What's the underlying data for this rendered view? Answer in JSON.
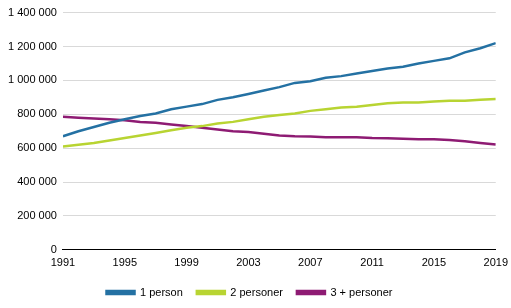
{
  "chart_data": {
    "type": "line",
    "x": [
      1991,
      1992,
      1993,
      1994,
      1995,
      1996,
      1997,
      1998,
      1999,
      2000,
      2001,
      2002,
      2003,
      2004,
      2005,
      2006,
      2007,
      2008,
      2009,
      2010,
      2011,
      2012,
      2013,
      2014,
      2015,
      2016,
      2017,
      2018,
      2019
    ],
    "xlim": [
      1991,
      2019
    ],
    "xticks": [
      1991,
      1995,
      1999,
      2003,
      2007,
      2011,
      2015,
      2019
    ],
    "ylim": [
      0,
      1400000
    ],
    "yticks": [
      0,
      {
        "value": 200000,
        "label": "200 000"
      },
      {
        "value": 400000,
        "label": "400 000"
      },
      {
        "value": 600000,
        "label": "600 000"
      },
      {
        "value": 800000,
        "label": "800 000"
      },
      {
        "value": 1000000,
        "label": "1 000 000"
      },
      {
        "value": 1200000,
        "label": "1 200 000"
      },
      {
        "value": 1400000,
        "label": "1 400 000"
      }
    ],
    "grid": true,
    "legend": "bottom",
    "series": [
      {
        "name": "1 person",
        "color": "#2471a3",
        "marker": "none",
        "line_style": "solid",
        "values": [
          670000,
          700000,
          725000,
          750000,
          770000,
          790000,
          805000,
          830000,
          845000,
          860000,
          885000,
          900000,
          920000,
          940000,
          960000,
          985000,
          995000,
          1015000,
          1025000,
          1040000,
          1055000,
          1070000,
          1080000,
          1100000,
          1115000,
          1130000,
          1165000,
          1190000,
          1220000
        ]
      },
      {
        "name": "2 personer",
        "color": "#b8d432",
        "marker": "none",
        "line_style": "solid",
        "values": [
          610000,
          620000,
          630000,
          645000,
          660000,
          675000,
          690000,
          705000,
          720000,
          730000,
          745000,
          755000,
          770000,
          785000,
          795000,
          805000,
          820000,
          830000,
          840000,
          845000,
          855000,
          865000,
          870000,
          870000,
          875000,
          880000,
          880000,
          885000,
          890000
        ]
      },
      {
        "name": "3 + personer",
        "color": "#8e1b73",
        "marker": "none",
        "line_style": "solid",
        "values": [
          785000,
          780000,
          775000,
          770000,
          765000,
          755000,
          750000,
          740000,
          730000,
          720000,
          710000,
          700000,
          695000,
          685000,
          675000,
          670000,
          668000,
          665000,
          665000,
          665000,
          660000,
          658000,
          655000,
          653000,
          652000,
          648000,
          640000,
          630000,
          622000
        ]
      }
    ]
  }
}
